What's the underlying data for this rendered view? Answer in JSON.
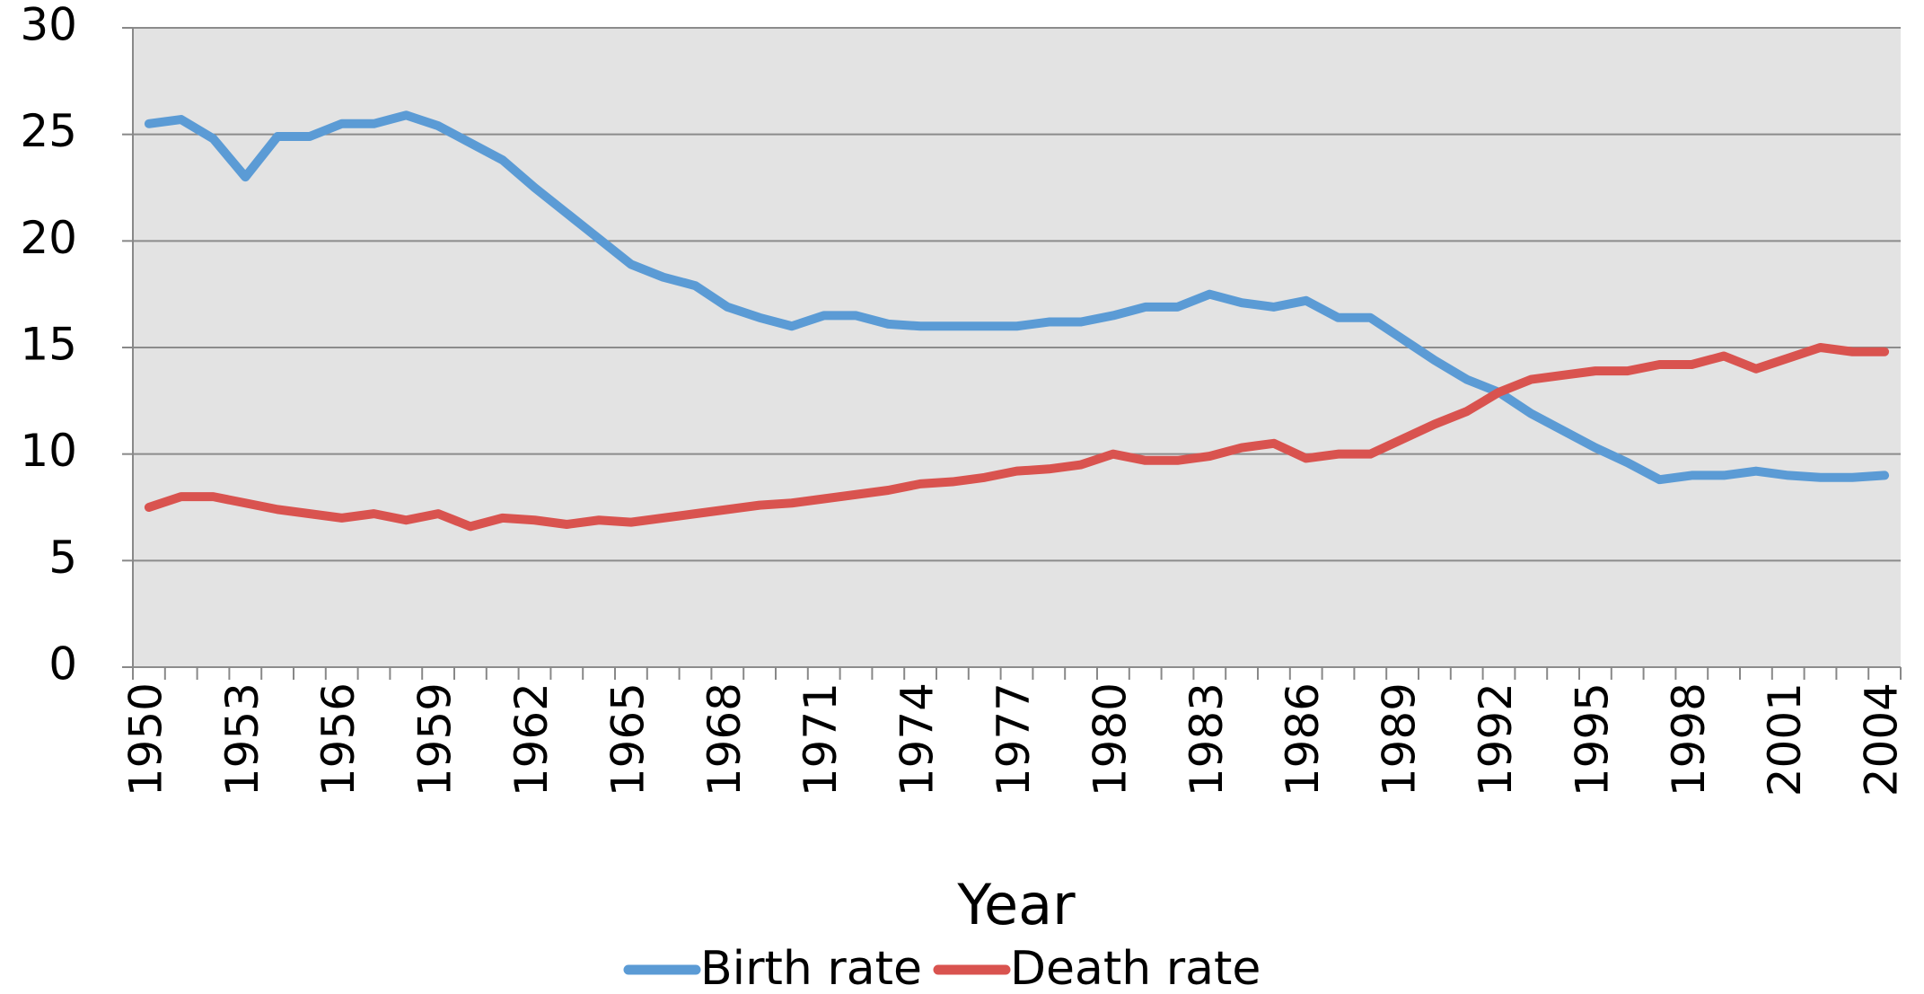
{
  "chart_data": {
    "type": "line",
    "x_label": "Year",
    "categories": [
      "1950",
      null,
      null,
      "1953",
      null,
      null,
      "1956",
      null,
      null,
      "1959",
      null,
      null,
      "1962",
      null,
      null,
      "1965",
      null,
      null,
      "1968",
      null,
      null,
      "1971",
      null,
      null,
      "1974",
      null,
      null,
      "1977",
      null,
      null,
      "1980",
      null,
      null,
      "1983",
      null,
      null,
      "1986",
      null,
      null,
      "1989",
      null,
      null,
      "1992",
      null,
      null,
      "1995",
      null,
      null,
      "1998",
      null,
      null,
      "2001",
      null,
      null,
      "2004"
    ],
    "series": [
      {
        "name": "Birth rate",
        "color": "#5b9bd5",
        "values": [
          25.5,
          25.7,
          24.8,
          23.0,
          24.9,
          24.9,
          25.5,
          25.5,
          25.9,
          25.4,
          24.6,
          23.8,
          22.5,
          21.3,
          20.1,
          18.9,
          18.3,
          17.9,
          16.9,
          16.4,
          16.0,
          16.5,
          16.5,
          16.1,
          16.0,
          16.0,
          16.0,
          16.0,
          16.2,
          16.2,
          16.5,
          16.9,
          16.9,
          17.5,
          17.1,
          16.9,
          17.2,
          16.4,
          16.4,
          15.4,
          14.4,
          13.5,
          12.9,
          11.9,
          11.1,
          10.3,
          9.6,
          8.8,
          9.0,
          9.0,
          9.2,
          9.0,
          8.9,
          8.9,
          9.0
        ]
      },
      {
        "name": "Death rate",
        "color": "#d9534f",
        "values": [
          7.5,
          8.0,
          8.0,
          7.7,
          7.4,
          7.2,
          7.0,
          7.2,
          6.9,
          7.2,
          6.6,
          7.0,
          6.9,
          6.7,
          6.9,
          6.8,
          7.0,
          7.2,
          7.4,
          7.6,
          7.7,
          7.9,
          8.1,
          8.3,
          8.6,
          8.7,
          8.9,
          9.2,
          9.3,
          9.5,
          10.0,
          9.7,
          9.7,
          9.9,
          10.3,
          10.5,
          9.8,
          10.0,
          10.0,
          10.7,
          11.4,
          12.0,
          12.9,
          13.5,
          13.7,
          13.9,
          13.9,
          14.2,
          14.2,
          14.6,
          14.0,
          14.5,
          15.0,
          14.8,
          14.8
        ]
      }
    ],
    "ylim": [
      0,
      30
    ],
    "yticks": [
      0,
      5,
      10,
      15,
      20,
      25,
      30
    ],
    "grid": true,
    "legend": "bottom"
  }
}
